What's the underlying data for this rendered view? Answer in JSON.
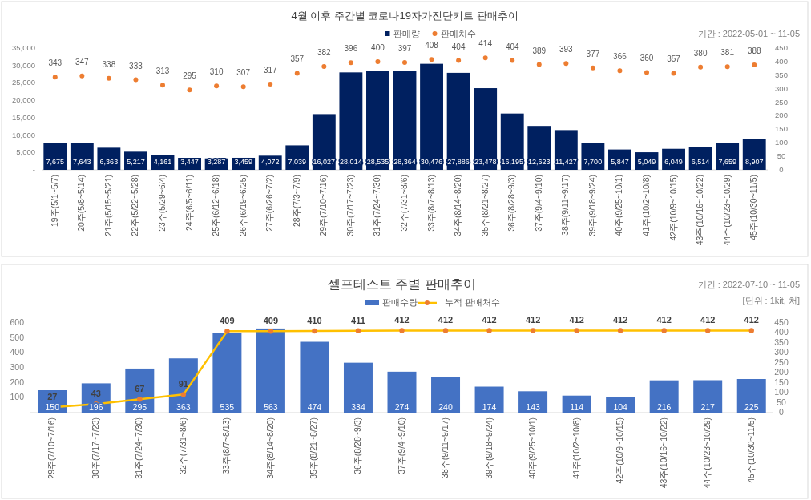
{
  "chart_data": [
    {
      "type": "bar",
      "title": "4월 이후 주간별 코로나19자가진단키트 판매추이",
      "annotations": [
        "기간 : 2022-05-01 ~ 11-05"
      ],
      "categories": [
        "19주(5/1~5/7)",
        "20주(5/8~5/14)",
        "21주(5/15~5/21)",
        "22주(5/22~5/28)",
        "23주(5/29~6/4)",
        "24주(6/5~6/11)",
        "25주(6/12~6/18)",
        "26주(6/19~6/25)",
        "27주(6/26~7/2)",
        "28주(7/3~7/9)",
        "29주(7/10~7/16)",
        "30주(7/17~7/23)",
        "31주(7/24~7/30)",
        "32주(7/31~8/6)",
        "33주(8/7~8/13)",
        "34주(8/14~8/20)",
        "35주(8/21~8/27)",
        "36주(8/28~9/3)",
        "37주(9/4~9/10)",
        "38주(9/11~9/17)",
        "39주(9/18~9/24)",
        "40주(9/25~10/1)",
        "41주(10/2~10/8)",
        "42주(10/9~10/15)",
        "43주(10/16~10/22)",
        "44주(10/23~10/29)",
        "45주(10/30~11/5)"
      ],
      "series": [
        {
          "name": "판매량",
          "color": "#002060",
          "values": [
            7675,
            7643,
            6363,
            5217,
            4161,
            3447,
            3287,
            3459,
            4072,
            7039,
            16027,
            28014,
            28535,
            28364,
            30476,
            27886,
            23478,
            16195,
            12623,
            11427,
            7700,
            5847,
            5049,
            6049,
            6514,
            7659,
            8907
          ],
          "value_labels": [
            "7,675",
            "7,643",
            "6,363",
            "5,217",
            "4,161",
            "3,447",
            "3,287",
            "3,459",
            "4,072",
            "7,039",
            "16,027",
            "28,014",
            "28,535",
            "28,364",
            "30,476",
            "27,886",
            "23,478",
            "16,195",
            "12,623",
            "11,427",
            "7,700",
            "5,847",
            "5,049",
            "6,049",
            "6,514",
            "7,659",
            "8,907"
          ]
        },
        {
          "name": "판매처수",
          "type": "scatter",
          "axis": "y2",
          "color": "#ed7d31",
          "marker": "circle",
          "values": [
            343,
            347,
            338,
            333,
            313,
            295,
            310,
            307,
            317,
            357,
            382,
            396,
            400,
            397,
            408,
            404,
            414,
            404,
            389,
            393,
            377,
            366,
            360,
            357,
            380,
            381,
            388
          ]
        }
      ],
      "ylim": [
        0,
        35000
      ],
      "yticks": [
        {
          "value": 0,
          "label": "-"
        },
        {
          "value": 5000,
          "label": "5,000"
        },
        {
          "value": 10000,
          "label": "10,000"
        },
        {
          "value": 15000,
          "label": "15,000"
        },
        {
          "value": 20000,
          "label": "20,000"
        },
        {
          "value": 25000,
          "label": "25,000"
        },
        {
          "value": 30000,
          "label": "30,000"
        },
        {
          "value": 35000,
          "label": "35,000"
        }
      ],
      "y2lim": [
        0,
        450
      ],
      "y2ticks": [
        0,
        50,
        100,
        150,
        200,
        250,
        300,
        350,
        400,
        450
      ],
      "data_labels": true,
      "legend": "top"
    },
    {
      "type": "bar",
      "title": "셀프테스트 주별 판매추이",
      "annotations": [
        "기간 : 2022-07-10 ~ 11-05",
        "[단위 : 1kit, 처]"
      ],
      "categories": [
        "29주(7/10~7/16)",
        "30주(7/17~7/23)",
        "31주(7/24~7/30)",
        "32주(7/31~8/6)",
        "33주(8/7~8/13)",
        "34주(8/14~8/20)",
        "35주(8/21~8/27)",
        "36주(8/28~9/3)",
        "37주(9/4~9/10)",
        "38주(9/11~9/17)",
        "39주(9/18~9/24)",
        "40주(9/25~10/1)",
        "41주(10/2~10/8)",
        "42주(10/9~10/15)",
        "43주(10/16~10/22)",
        "44주(10/23~10/29)",
        "45주(10/30~11/5)"
      ],
      "series": [
        {
          "name": "판매수량",
          "color": "#4472c4",
          "values": [
            150,
            196,
            295,
            363,
            535,
            563,
            474,
            334,
            274,
            240,
            174,
            143,
            114,
            104,
            216,
            217,
            225
          ]
        },
        {
          "name": "누적 판매처수",
          "type": "line",
          "axis": "y2",
          "color": "#ffc000",
          "marker": "circle",
          "values": [
            27,
            43,
            67,
            91,
            409,
            409,
            410,
            411,
            412,
            412,
            412,
            412,
            412,
            412,
            412,
            412,
            412
          ]
        }
      ],
      "ylim": [
        0,
        600
      ],
      "yticks": [
        {
          "value": 0,
          "label": "-"
        },
        100,
        200,
        300,
        400,
        500,
        600
      ],
      "y2lim": [
        0,
        450
      ],
      "y2ticks": [
        0,
        50,
        100,
        150,
        200,
        250,
        300,
        350,
        400,
        450
      ],
      "data_labels": true,
      "legend": "top"
    }
  ]
}
